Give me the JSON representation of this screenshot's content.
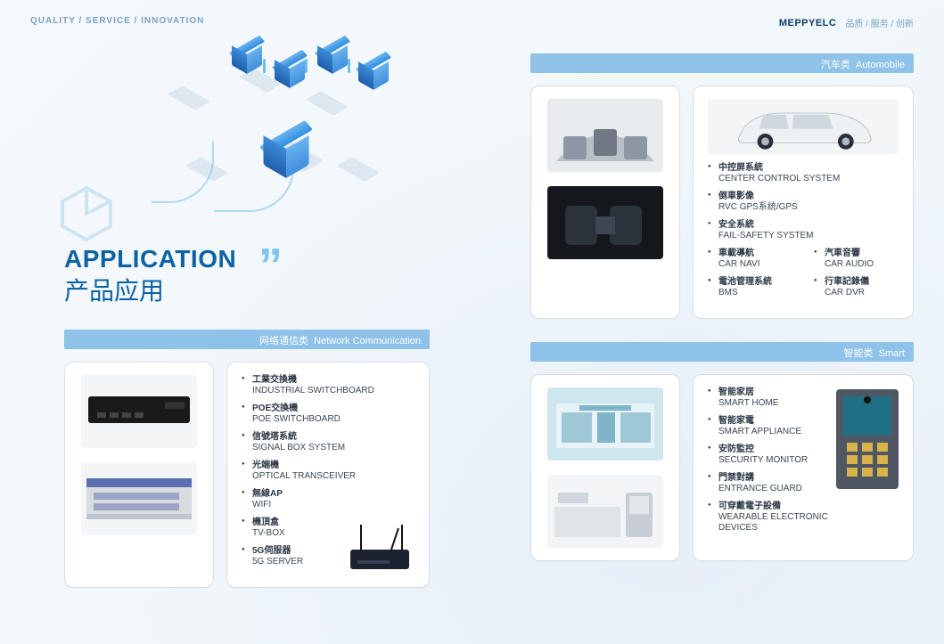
{
  "header": {
    "left_text": "QUALITY / SERVICE / INNOVATION",
    "logo": "MEPPYELC",
    "right_tag": "品质 / 服务 / 创新"
  },
  "title": {
    "en": "APPLICATION",
    "cn": "产品应用",
    "quote": "”"
  },
  "colors": {
    "brand_blue": "#0b63a3",
    "bar_blue": "#8ec2e8",
    "accent": "#7fc6ee",
    "text": "#2c3845",
    "card_border": "#d6dee5",
    "bg1": "#f5f9fc",
    "bg2": "#eef5fa"
  },
  "sections": {
    "network": {
      "bar_cn": "网络通信类",
      "bar_en": "Network Communication",
      "items": [
        {
          "cn": "工業交換機",
          "en": "INDUSTRIAL SWITCHBOARD"
        },
        {
          "cn": "POE交換機",
          "en": "POE SWITCHBOARD"
        },
        {
          "cn": "信號塔系統",
          "en": "SIGNAL BOX SYSTEM"
        },
        {
          "cn": "光端機",
          "en": "OPTICAL TRANSCEIVER"
        },
        {
          "cn": "無線AP",
          "en": "WIFI"
        },
        {
          "cn": "機頂盒",
          "en": "TV-BOX"
        },
        {
          "cn": "5G伺服器",
          "en": "5G SERVER"
        }
      ]
    },
    "auto": {
      "bar_cn": "汽车类",
      "bar_en": "Automobile",
      "items_left": [
        {
          "cn": "中控屏系統",
          "en": "CENTER CONTROL SYSTEM"
        },
        {
          "cn": "倒車影像",
          "en": "RVC GPS系统/GPS"
        },
        {
          "cn": "安全系統",
          "en": "FAIL-SAFETY SYSTEM"
        }
      ],
      "items_pair_left": [
        {
          "cn": "車載導航",
          "en": "CAR NAVI"
        },
        {
          "cn": "電池管理系統",
          "en": "BMS"
        }
      ],
      "items_pair_right": [
        {
          "cn": "汽車音響",
          "en": "CAR AUDIO"
        },
        {
          "cn": "行車記錄儀",
          "en": "CAR DVR"
        }
      ]
    },
    "smart": {
      "bar_cn": "智能类",
      "bar_en": "Smart",
      "items": [
        {
          "cn": "智能家居",
          "en": "SMART HOME"
        },
        {
          "cn": "智能家電",
          "en": "SMART APPLIANCE"
        },
        {
          "cn": "安防監控",
          "en": "SECURITY MONITOR"
        },
        {
          "cn": "門禁對講",
          "en": "ENTRANCE GUARD"
        },
        {
          "cn": "可穿戴電子設備",
          "en": "WEARABLE ELECTRONIC DEVICES"
        }
      ]
    }
  }
}
